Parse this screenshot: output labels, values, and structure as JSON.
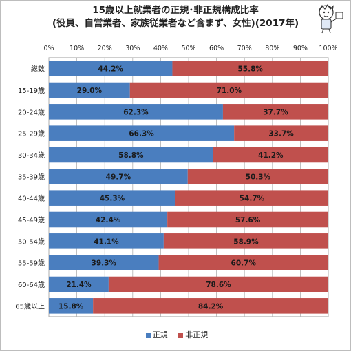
{
  "chart_data": {
    "type": "bar",
    "stacked": true,
    "orientation": "horizontal",
    "title": "15歳以上就業者の正規･非正規構成比率",
    "subtitle": "(役員、自営業者、家族従業者など含まず、女性)(2017年)",
    "categories": [
      "総数",
      "15-19歳",
      "20-24歳",
      "25-29歳",
      "30-34歳",
      "35-39歳",
      "40-44歳",
      "45-49歳",
      "50-54歳",
      "55-59歳",
      "60-64歳",
      "65歳以上"
    ],
    "series": [
      {
        "name": "正規",
        "color": "#4a7ebf",
        "values": [
          44.2,
          29.0,
          62.3,
          66.3,
          58.8,
          49.7,
          45.3,
          42.4,
          41.1,
          39.3,
          21.4,
          15.8
        ]
      },
      {
        "name": "非正規",
        "color": "#c0504d",
        "values": [
          55.8,
          71.0,
          37.7,
          33.7,
          41.2,
          50.3,
          54.7,
          57.6,
          58.9,
          60.7,
          78.6,
          84.2
        ]
      }
    ],
    "xlim": [
      0,
      100
    ],
    "xticks": [
      "0%",
      "10%",
      "20%",
      "30%",
      "40%",
      "50%",
      "60%",
      "70%",
      "80%",
      "90%",
      "100%"
    ],
    "legend_position": "bottom",
    "grid": true
  }
}
